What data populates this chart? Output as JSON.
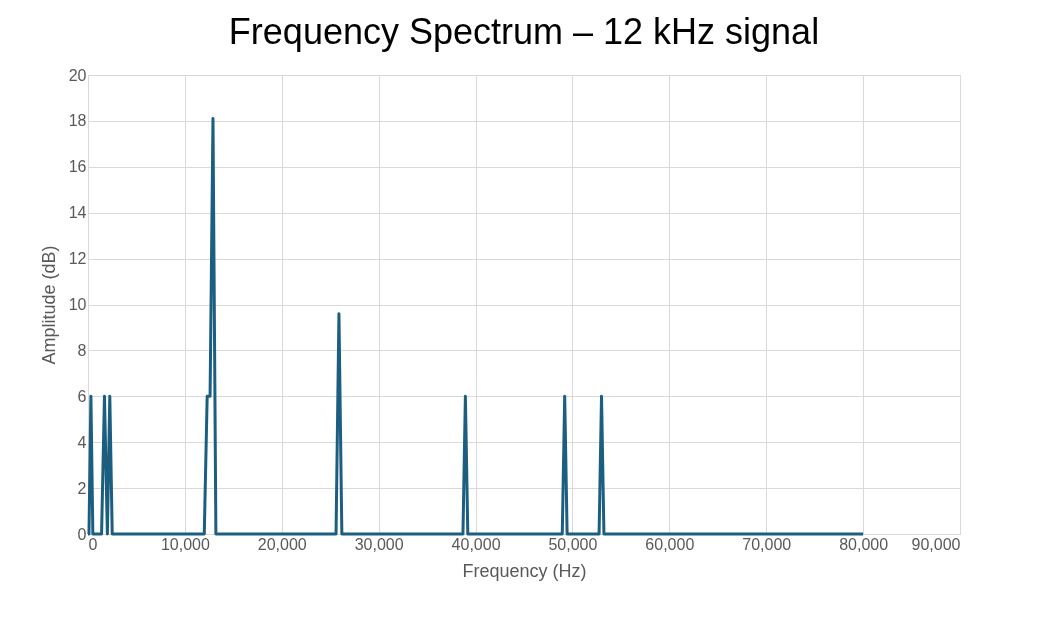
{
  "chart_data": {
    "type": "line",
    "title": "Frequency Spectrum – 12 kHz signal",
    "xlabel": "Frequency (Hz)",
    "ylabel": "Amplitude (dB)",
    "series": [
      {
        "color": "#1b5e80",
        "x": [
          0,
          100,
          300,
          500,
          1400,
          1700,
          2000,
          2250,
          2500,
          12000,
          12300,
          12600,
          12900,
          13200,
          25600,
          25900,
          26200,
          38700,
          38950,
          39200,
          48950,
          49200,
          49450,
          52750,
          53000,
          53250,
          80000
        ],
        "values": [
          0,
          0,
          6,
          0,
          0,
          6,
          0,
          6,
          0,
          0,
          6,
          6,
          18.1,
          0,
          0,
          9.6,
          0,
          0,
          6,
          0,
          0,
          6,
          0,
          0,
          6,
          0,
          0
        ]
      }
    ],
    "xlim": [
      0,
      90000
    ],
    "xticks": [
      {
        "value": 0,
        "label": "0"
      },
      {
        "value": 10000,
        "label": "10,000"
      },
      {
        "value": 20000,
        "label": "20,000"
      },
      {
        "value": 30000,
        "label": "30,000"
      },
      {
        "value": 40000,
        "label": "40,000"
      },
      {
        "value": 50000,
        "label": "50,000"
      },
      {
        "value": 60000,
        "label": "60,000"
      },
      {
        "value": 70000,
        "label": "70,000"
      },
      {
        "value": 80000,
        "label": "80,000"
      },
      {
        "value": 90000,
        "label": "90,000"
      }
    ],
    "ylim": [
      0,
      20
    ],
    "yticks": [
      0,
      2,
      4,
      6,
      8,
      10,
      12,
      14,
      16,
      18,
      20
    ],
    "grid": true,
    "marker": "none",
    "line_style": "solid"
  }
}
